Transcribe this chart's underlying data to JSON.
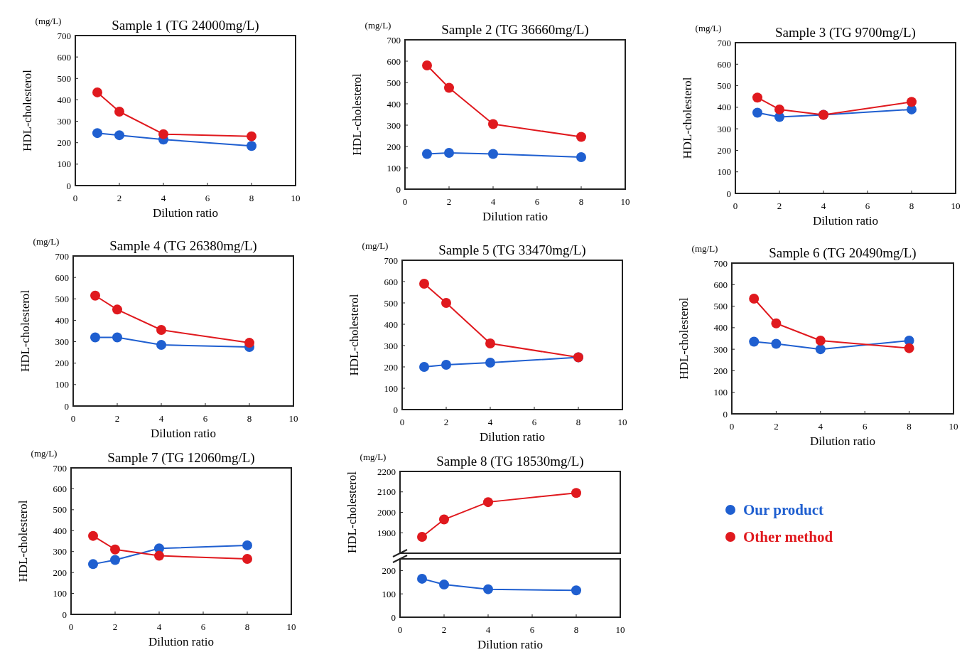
{
  "chart_data": [
    {
      "type": "line",
      "title": "Sample 1 (TG 24000mg/L)",
      "annotations": [
        "(mg/L)"
      ],
      "xlabel": "Dilution ratio",
      "ylabel": "HDL-cholesterol",
      "x": [
        1,
        2,
        4,
        8
      ],
      "xlim": [
        0,
        10
      ],
      "xticks": [
        0,
        2,
        4,
        6,
        8,
        10
      ],
      "ylim": [
        0,
        700
      ],
      "yticks": [
        0,
        100,
        200,
        300,
        400,
        500,
        600,
        700
      ],
      "marker": "circle",
      "series": [
        {
          "color": "#1f5fd0",
          "values": [
            245,
            235,
            215,
            185
          ]
        },
        {
          "color": "#e0191e",
          "values": [
            435,
            345,
            240,
            230
          ]
        }
      ]
    },
    {
      "type": "line",
      "title": "Sample 2 (TG 36660mg/L)",
      "annotations": [
        "(mg/L)"
      ],
      "xlabel": "Dilution ratio",
      "ylabel": "HDL-cholesterol",
      "x": [
        1,
        2,
        4,
        8
      ],
      "xlim": [
        0,
        10
      ],
      "xticks": [
        0,
        2,
        4,
        6,
        8,
        10
      ],
      "ylim": [
        0,
        700
      ],
      "yticks": [
        0,
        100,
        200,
        300,
        400,
        500,
        600,
        700
      ],
      "marker": "circle",
      "series": [
        {
          "color": "#1f5fd0",
          "values": [
            165,
            170,
            165,
            150
          ]
        },
        {
          "color": "#e0191e",
          "values": [
            580,
            475,
            305,
            245
          ]
        }
      ]
    },
    {
      "type": "line",
      "title": "Sample 3 (TG 9700mg/L)",
      "annotations": [
        "(mg/L)"
      ],
      "xlabel": "Dilution ratio",
      "ylabel": "HDL-cholesterol",
      "x": [
        1,
        2,
        4,
        8
      ],
      "xlim": [
        0,
        10
      ],
      "xticks": [
        0,
        2,
        4,
        6,
        8,
        10
      ],
      "ylim": [
        0,
        700
      ],
      "yticks": [
        0,
        100,
        200,
        300,
        400,
        500,
        600,
        700
      ],
      "marker": "circle",
      "series": [
        {
          "color": "#1f5fd0",
          "values": [
            375,
            355,
            365,
            390
          ]
        },
        {
          "color": "#e0191e",
          "values": [
            445,
            390,
            365,
            425
          ]
        }
      ]
    },
    {
      "type": "line",
      "title": "Sample 4 (TG 26380mg/L)",
      "annotations": [
        "(mg/L)"
      ],
      "xlabel": "Dilution ratio",
      "ylabel": "HDL-cholesterol",
      "x": [
        1,
        2,
        4,
        8
      ],
      "xlim": [
        0,
        10
      ],
      "xticks": [
        0,
        2,
        4,
        6,
        8,
        10
      ],
      "ylim": [
        0,
        700
      ],
      "yticks": [
        0,
        100,
        200,
        300,
        400,
        500,
        600,
        700
      ],
      "marker": "circle",
      "series": [
        {
          "color": "#1f5fd0",
          "values": [
            320,
            320,
            285,
            275
          ]
        },
        {
          "color": "#e0191e",
          "values": [
            515,
            450,
            355,
            295
          ]
        }
      ]
    },
    {
      "type": "line",
      "title": "Sample 5 (TG 33470mg/L)",
      "annotations": [
        "(mg/L)"
      ],
      "xlabel": "Dilution ratio",
      "ylabel": "HDL-cholesterol",
      "x": [
        1,
        2,
        4,
        8
      ],
      "xlim": [
        0,
        10
      ],
      "xticks": [
        0,
        2,
        4,
        6,
        8,
        10
      ],
      "ylim": [
        0,
        700
      ],
      "yticks": [
        0,
        100,
        200,
        300,
        400,
        500,
        600,
        700
      ],
      "marker": "circle",
      "series": [
        {
          "color": "#1f5fd0",
          "values": [
            200,
            210,
            220,
            245
          ]
        },
        {
          "color": "#e0191e",
          "values": [
            590,
            500,
            310,
            245
          ]
        }
      ]
    },
    {
      "type": "line",
      "title": "Sample 6 (TG 20490mg/L)",
      "annotations": [
        "(mg/L)"
      ],
      "xlabel": "Dilution ratio",
      "ylabel": "HDL-cholesterol",
      "x": [
        1,
        2,
        4,
        8
      ],
      "xlim": [
        0,
        10
      ],
      "xticks": [
        0,
        2,
        4,
        6,
        8,
        10
      ],
      "ylim": [
        0,
        700
      ],
      "yticks": [
        0,
        100,
        200,
        300,
        400,
        500,
        600,
        700
      ],
      "marker": "circle",
      "series": [
        {
          "color": "#1f5fd0",
          "values": [
            335,
            325,
            300,
            340
          ]
        },
        {
          "color": "#e0191e",
          "values": [
            535,
            420,
            340,
            305
          ]
        }
      ]
    },
    {
      "type": "line",
      "title": "Sample 7 (TG 12060mg/L)",
      "annotations": [
        "(mg/L)"
      ],
      "xlabel": "Dilution ratio",
      "ylabel": "HDL-cholesterol",
      "x": [
        1,
        2,
        4,
        8
      ],
      "xlim": [
        0,
        10
      ],
      "xticks": [
        0,
        2,
        4,
        6,
        8,
        10
      ],
      "ylim": [
        0,
        700
      ],
      "yticks": [
        0,
        100,
        200,
        300,
        400,
        500,
        600,
        700
      ],
      "marker": "circle",
      "series": [
        {
          "color": "#1f5fd0",
          "values": [
            240,
            260,
            315,
            330
          ]
        },
        {
          "color": "#e0191e",
          "values": [
            375,
            310,
            280,
            265
          ]
        }
      ]
    },
    {
      "type": "line",
      "title": "Sample 8 (TG 18530mg/L)",
      "annotations": [
        "(mg/L)"
      ],
      "ylabel": "HDL-cholesterol",
      "x": [
        1,
        2,
        4,
        8
      ],
      "xlim": [
        0,
        10
      ],
      "ylim": [
        1800,
        2200
      ],
      "yticks": [
        1900,
        2000,
        2100,
        2200
      ],
      "tick_labels": "y",
      "marker": "circle",
      "legend": "right",
      "series": [
        {
          "name": "Other method",
          "color": "#e0191e",
          "values": [
            1880,
            1965,
            2050,
            2095
          ]
        }
      ]
    },
    {
      "type": "line",
      "xlabel": "Dilution ratio",
      "x": [
        1,
        2,
        4,
        8
      ],
      "xlim": [
        0,
        10
      ],
      "xticks": [
        0,
        2,
        4,
        6,
        8,
        10
      ],
      "ylim": [
        0,
        250
      ],
      "yticks": [
        0,
        100,
        200
      ],
      "marker": "circle",
      "legend": "right",
      "series": [
        {
          "name": "Our product",
          "color": "#1f5fd0",
          "values": [
            165,
            140,
            120,
            115
          ]
        }
      ]
    }
  ]
}
